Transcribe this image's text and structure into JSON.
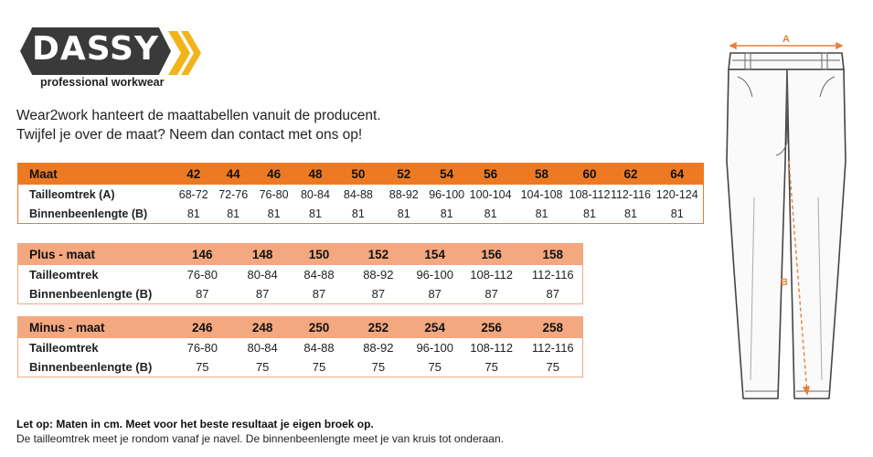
{
  "brand": {
    "name": "DASSY",
    "tagline": "professional workwear",
    "accent": "#f2b419",
    "badge_color": "#3a3a3a"
  },
  "intro": {
    "line1": "Wear2work hanteert de maattabellen vanuit de producent.",
    "line2": "Twijfel je over de maat? Neem dan contact met ons op!"
  },
  "colors": {
    "main_header": "#ed7a23",
    "sub_header": "#f4a880",
    "measure_line": "#e8803a"
  },
  "table_main": {
    "header_label": "Maat",
    "sizes": [
      "42",
      "44",
      "46",
      "48",
      "50",
      "52",
      "54",
      "56",
      "58",
      "60",
      "62",
      "64"
    ],
    "rows": [
      {
        "label": "Tailleomtrek (A)",
        "values": [
          "68-72",
          "72-76",
          "76-80",
          "80-84",
          "84-88",
          "88-92",
          "96-100",
          "100-104",
          "104-108",
          "108-112",
          "112-116",
          "120-124"
        ]
      },
      {
        "label": "Binnenbeenlengte (B)",
        "values": [
          "81",
          "81",
          "81",
          "81",
          "81",
          "81",
          "81",
          "81",
          "81",
          "81",
          "81",
          "81"
        ]
      }
    ]
  },
  "table_plus": {
    "header_label": "Plus - maat",
    "sizes": [
      "146",
      "148",
      "150",
      "152",
      "154",
      "156",
      "158"
    ],
    "rows": [
      {
        "label": "Tailleomtrek",
        "values": [
          "76-80",
          "80-84",
          "84-88",
          "88-92",
          "96-100",
          "108-112",
          "112-116"
        ]
      },
      {
        "label": "Binnenbeenlengte (B)",
        "values": [
          "87",
          "87",
          "87",
          "87",
          "87",
          "87",
          "87"
        ]
      }
    ]
  },
  "table_minus": {
    "header_label": "Minus - maat",
    "sizes": [
      "246",
      "248",
      "250",
      "252",
      "254",
      "256",
      "258"
    ],
    "rows": [
      {
        "label": "Tailleomtrek",
        "values": [
          "76-80",
          "80-84",
          "84-88",
          "88-92",
          "96-100",
          "108-112",
          "112-116"
        ]
      },
      {
        "label": "Binnenbeenlengte (B)",
        "values": [
          "75",
          "75",
          "75",
          "75",
          "75",
          "75",
          "75"
        ]
      }
    ]
  },
  "diagram": {
    "label_a": "A",
    "label_b": "B"
  },
  "notes": {
    "bold": "Let op: Maten in cm. Meet voor het beste resultaat je eigen broek op.",
    "plain": "De tailleomtrek meet je rondom vanaf je navel. De binnenbeenlengte meet je van kruis tot onderaan."
  }
}
